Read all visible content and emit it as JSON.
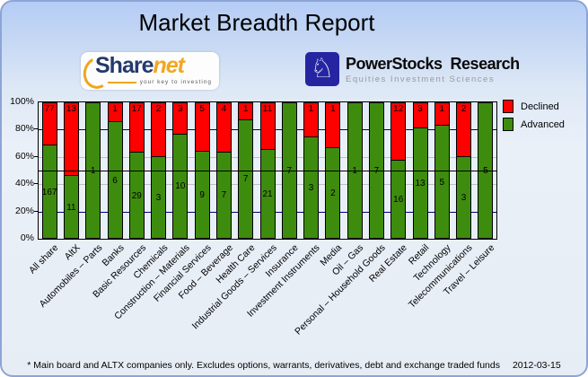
{
  "title": "Market Breadth Report",
  "logos": {
    "sharenet": {
      "brand_primary": "Share",
      "brand_secondary": "net",
      "tagline": "your key to investing"
    },
    "powerstocks": {
      "brand": "PowerStocks  Research",
      "tagline": "Equities Investment Sciences",
      "icon": "knight-chess-icon",
      "accent_color": "#2525a2"
    }
  },
  "legend": {
    "items": [
      {
        "label": "Declined",
        "color": "#ff0000"
      },
      {
        "label": "Advanced",
        "color": "#3e8c0e"
      }
    ]
  },
  "footer": {
    "note": "* Main board and ALTX companies only. Excludes options, warrants, derivatives, debt and exchange traded funds",
    "date": "2012-03-15"
  },
  "chart_data": {
    "type": "bar",
    "stacked": true,
    "normalized": "percent_of_total",
    "title": "Market Breadth Report",
    "categories": [
      "All share",
      "AltX",
      "Automobiles – Parts",
      "Banks",
      "Basic Resources",
      "Chemicals",
      "Construction – Materials",
      "Financial Services",
      "Food – Beverage",
      "Health Care",
      "Industrial Goods – Services",
      "Insurance",
      "Investment Instruments",
      "Media",
      "Oil – Gas",
      "Personal – Household Goods",
      "Real Estate",
      "Retail",
      "Technology",
      "Telecommunications",
      "Travel – Leisure"
    ],
    "series": [
      {
        "name": "Advanced",
        "color": "#3e8c0e",
        "values": [
          167,
          11,
          1,
          6,
          29,
          3,
          10,
          9,
          7,
          7,
          21,
          7,
          3,
          2,
          1,
          7,
          16,
          13,
          5,
          3,
          5
        ]
      },
      {
        "name": "Declined",
        "color": "#ff0000",
        "values": [
          77,
          13,
          0,
          1,
          17,
          2,
          3,
          5,
          4,
          1,
          11,
          0,
          1,
          1,
          0,
          0,
          12,
          3,
          1,
          2,
          0
        ]
      }
    ],
    "y_ticks": [
      "0%",
      "20%",
      "40%",
      "60%",
      "80%",
      "100%"
    ],
    "ylim": [
      0,
      100
    ],
    "ylabel": "",
    "xlabel": "",
    "legend_position": "top-right",
    "grid": {
      "navy_lines_pct": [
        20,
        80
      ],
      "gray_lines_pct": [
        40,
        60
      ],
      "reference_line_pct": 50,
      "navy_color": "#000080",
      "gray_color": "#bfbfbf",
      "reference_color": "#000000"
    }
  }
}
